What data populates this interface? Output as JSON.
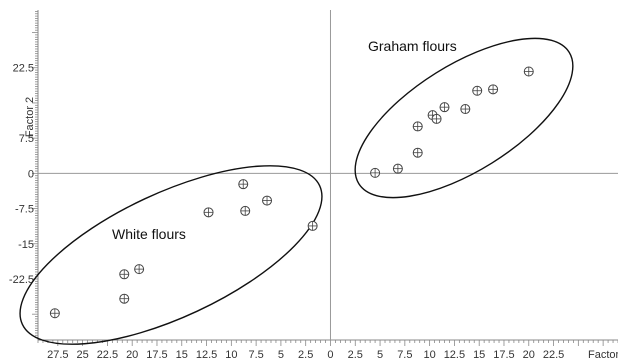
{
  "chart_data": {
    "type": "scatter",
    "xlabel": "Factor",
    "ylabel": "Factor 2",
    "xlim": [
      -29.5,
      29
    ],
    "ylim": [
      -35.5,
      34.8
    ],
    "x_ticks": [
      -27.5,
      -25,
      -22.5,
      -20,
      -17.5,
      -15,
      -12.5,
      -10,
      -7.5,
      -5,
      -2.5,
      0,
      2.5,
      5,
      7.5,
      10,
      12.5,
      15,
      17.5,
      20,
      22.5
    ],
    "x_tick_labels": [
      "27.5",
      "25",
      "22.5",
      "20",
      "17.5",
      "15",
      "12.5",
      "10",
      "7.5",
      "5",
      "2.5",
      "0",
      "2.5",
      "5",
      "7.5",
      "10",
      "12.5",
      "15",
      "17.5",
      "20",
      "22.5"
    ],
    "y_ticks": [
      22.5,
      7.5,
      0,
      -7.5,
      -15,
      -22.5
    ],
    "y_tick_labels": [
      "22.5",
      "7.5",
      "0",
      "-7.5",
      "-15",
      "-22.5"
    ],
    "grid": false,
    "zero_lines": true,
    "marker_color": "#444444",
    "ellipse_color": "#111111",
    "groups": [
      {
        "annotation": "Graham flours",
        "points": [
          {
            "x": 4.5,
            "y": 0.1
          },
          {
            "x": 6.8,
            "y": 1.0
          },
          {
            "x": 8.8,
            "y": 4.4
          },
          {
            "x": 8.8,
            "y": 10.0
          },
          {
            "x": 10.3,
            "y": 12.4
          },
          {
            "x": 10.7,
            "y": 11.6
          },
          {
            "x": 11.5,
            "y": 14.1
          },
          {
            "x": 13.6,
            "y": 13.7
          },
          {
            "x": 14.8,
            "y": 17.6
          },
          {
            "x": 16.4,
            "y": 17.9
          },
          {
            "x": 20.0,
            "y": 21.7
          }
        ]
      },
      {
        "annotation": "White flours",
        "points": [
          {
            "x": -27.8,
            "y": -29.8
          },
          {
            "x": -20.8,
            "y": -26.7
          },
          {
            "x": -20.8,
            "y": -21.5
          },
          {
            "x": -19.3,
            "y": -20.4
          },
          {
            "x": -12.3,
            "y": -8.3
          },
          {
            "x": -8.8,
            "y": -2.3
          },
          {
            "x": -8.6,
            "y": -8.0
          },
          {
            "x": -6.4,
            "y": -5.8
          },
          {
            "x": -1.8,
            "y": -11.2
          }
        ]
      }
    ]
  }
}
